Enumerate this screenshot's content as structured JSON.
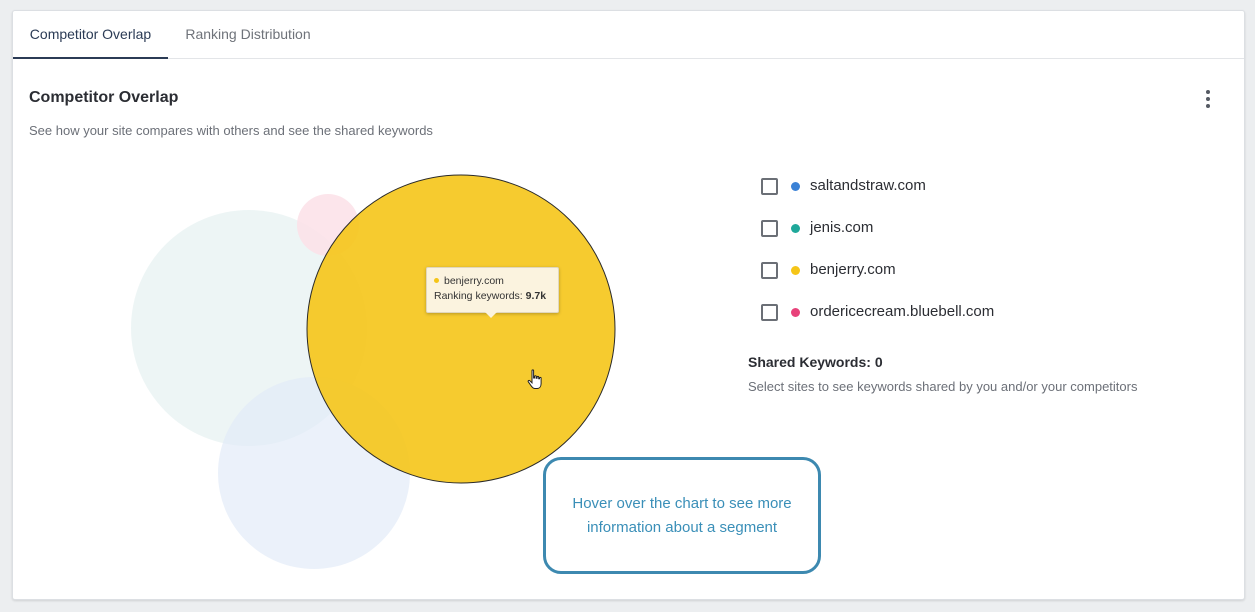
{
  "tabs": [
    {
      "label": "Competitor Overlap",
      "active": true
    },
    {
      "label": "Ranking Distribution",
      "active": false
    }
  ],
  "panel": {
    "title": "Competitor Overlap",
    "subtitle": "See how your site compares with others and see the shared keywords",
    "menu_icon": "kebab-vertical-icon"
  },
  "colors": {
    "saltandstraw": "#3b82d6",
    "jenis": "#1fa89a",
    "benjerry": "#f5c518",
    "bluebell": "#e8427a",
    "hint_border": "#3d89b0"
  },
  "sites": [
    {
      "name": "saltandstraw.com",
      "color": "#3b82d6",
      "checked": false
    },
    {
      "name": "jenis.com",
      "color": "#1fa89a",
      "checked": false
    },
    {
      "name": "benjerry.com",
      "color": "#f5c518",
      "checked": false
    },
    {
      "name": "ordericecream.bluebell.com",
      "color": "#e8427a",
      "checked": false
    }
  ],
  "tooltip": {
    "site": "benjerry.com",
    "metric_label": "Ranking keywords:",
    "metric_value": "9.7k"
  },
  "shared": {
    "title": "Shared Keywords: 0",
    "description": "Select sites to see keywords shared by you and/or your competitors"
  },
  "hint": {
    "text": "Hover over the chart to see more information about a segment"
  }
}
